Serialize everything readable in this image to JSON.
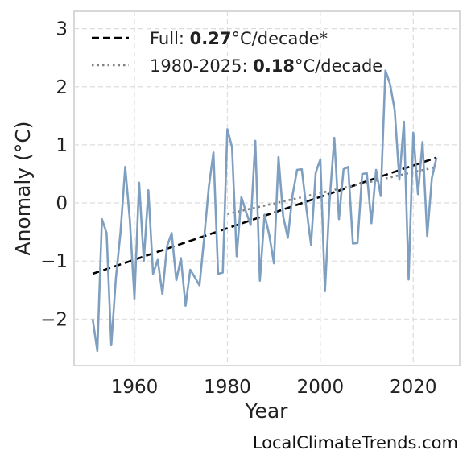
{
  "chart_data": {
    "type": "line",
    "xlabel": "Year",
    "ylabel": "Anomaly (°C)",
    "xlim": [
      1947,
      2030
    ],
    "ylim": [
      -2.8,
      3.3
    ],
    "xticks": [
      1960,
      1980,
      2000,
      2020
    ],
    "yticks": [
      -2,
      -1,
      0,
      1,
      2,
      3
    ],
    "xtick_labels": [
      "1960",
      "1980",
      "2000",
      "2020"
    ],
    "ytick_labels": [
      "−2",
      "−1",
      "0",
      "1",
      "2",
      "3"
    ],
    "grid": true,
    "legend_placement": "top-left",
    "colors": {
      "series": "#7f9fc0",
      "full_trend": "#000000",
      "recent_trend": "#808080",
      "grid": "#dddddd",
      "frame": "#cccccc"
    },
    "series": [
      {
        "x": [
          1951,
          1952,
          1953,
          1954,
          1955,
          1956,
          1957,
          1958,
          1959,
          1960,
          1961,
          1962,
          1963,
          1964,
          1965,
          1966,
          1967,
          1968,
          1969,
          1970,
          1971,
          1972,
          1973,
          1974,
          1975,
          1976,
          1977,
          1978,
          1979,
          1980,
          1981,
          1982,
          1983,
          1984,
          1985,
          1986,
          1987,
          1988,
          1989,
          1990,
          1991,
          1992,
          1993,
          1994,
          1995,
          1996,
          1997,
          1998,
          1999,
          2000,
          2001,
          2002,
          2003,
          2004,
          2005,
          2006,
          2007,
          2008,
          2009,
          2010,
          2011,
          2012,
          2013,
          2014,
          2015,
          2016,
          2017,
          2018,
          2019,
          2020,
          2021,
          2022,
          2023,
          2024,
          2025
        ],
        "y": [
          -2.0,
          -2.55,
          -0.28,
          -0.52,
          -2.45,
          -1.3,
          -0.5,
          0.62,
          -0.3,
          -1.65,
          0.35,
          -1.0,
          0.22,
          -1.22,
          -0.98,
          -1.57,
          -0.75,
          -0.52,
          -1.33,
          -0.95,
          -1.77,
          -1.15,
          -1.28,
          -1.42,
          -0.6,
          0.28,
          0.87,
          -1.22,
          -1.2,
          1.27,
          0.96,
          -0.92,
          0.1,
          -0.15,
          -0.38,
          1.07,
          -1.34,
          -0.2,
          -0.55,
          -1.04,
          0.79,
          -0.23,
          -0.6,
          0.12,
          0.57,
          0.58,
          -0.1,
          -0.72,
          0.52,
          0.75,
          -1.52,
          0.05,
          1.12,
          -0.28,
          0.58,
          0.62,
          -0.7,
          -0.69,
          0.5,
          0.51,
          -0.35,
          0.57,
          0.12,
          2.28,
          2.05,
          1.6,
          0.4,
          1.4,
          -1.32,
          1.21,
          0.15,
          1.05,
          -0.57,
          0.43,
          0.78
        ]
      }
    ],
    "trends": [
      {
        "x": [
          1951,
          2025
        ],
        "y": [
          -1.22,
          0.78
        ]
      },
      {
        "x": [
          1980,
          2025
        ],
        "y": [
          -0.19,
          0.62
        ]
      }
    ],
    "legend": [
      {
        "prefix": "Full: ",
        "value": "0.27",
        "suffix": "°C/decade*"
      },
      {
        "prefix": "1980-2025: ",
        "value": "0.18",
        "suffix": "°C/decade"
      }
    ]
  },
  "footer": {
    "source": "LocalClimateTrends.com"
  }
}
